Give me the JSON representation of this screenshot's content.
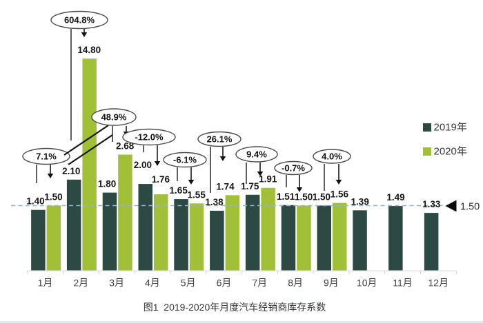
{
  "colors": {
    "series_2019": "#2c4944",
    "series_2020": "#a2c037",
    "reference_line": "#8fb6d2",
    "annotation_stroke": "#4a4a4a",
    "axis": "#cfd2d4"
  },
  "chart_data": {
    "type": "bar",
    "title": "图1  2019-2020年月度汽车经销商库存系数",
    "xlabel": "",
    "ylabel": "",
    "categories": [
      "1月",
      "2月",
      "3月",
      "4月",
      "5月",
      "6月",
      "7月",
      "8月",
      "9月",
      "10月",
      "11月",
      "12月"
    ],
    "series": [
      {
        "name": "2019年",
        "color": "#2c4944",
        "values": [
          1.4,
          2.1,
          1.8,
          2.0,
          1.65,
          1.38,
          1.75,
          1.51,
          1.5,
          1.39,
          1.49,
          1.33
        ]
      },
      {
        "name": "2020年",
        "color": "#a2c037",
        "values": [
          1.5,
          14.8,
          2.68,
          1.76,
          1.55,
          1.74,
          1.91,
          1.5,
          1.56,
          null,
          null,
          null
        ]
      }
    ],
    "annotations": [
      {
        "month": "1月",
        "label": "7.1%"
      },
      {
        "month": "2月",
        "label": "604.8%"
      },
      {
        "month": "3月",
        "label": "48.9%"
      },
      {
        "month": "4月",
        "label": "-12.0%"
      },
      {
        "month": "5月",
        "label": "-6.1%"
      },
      {
        "month": "6月",
        "label": "26.1%"
      },
      {
        "month": "7月",
        "label": "9.4%"
      },
      {
        "month": "8月",
        "label": "-0.7%"
      },
      {
        "month": "9月",
        "label": "4.0%"
      }
    ],
    "reference_line": {
      "value": 1.5,
      "label": "1.50"
    },
    "clipped_bar": {
      "month": "2月",
      "series": "2020年",
      "value": 14.8,
      "note": "bar drawn clipped with axis-break marks"
    },
    "legend_position": "right",
    "gridlines": false,
    "ylim": [
      0,
      5
    ]
  }
}
